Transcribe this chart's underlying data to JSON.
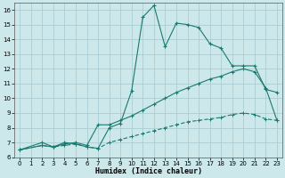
{
  "xlabel": "Humidex (Indice chaleur)",
  "bg_color": "#cce8ea",
  "grid_color": "#aacdd4",
  "line_color": "#1a7a6e",
  "xlim": [
    -0.5,
    23.5
  ],
  "ylim": [
    6,
    16.5
  ],
  "xticks": [
    0,
    1,
    2,
    3,
    4,
    5,
    6,
    7,
    8,
    9,
    10,
    11,
    12,
    13,
    14,
    15,
    16,
    17,
    18,
    19,
    20,
    21,
    22,
    23
  ],
  "yticks": [
    6,
    7,
    8,
    9,
    10,
    11,
    12,
    13,
    14,
    15,
    16
  ],
  "series1_x": [
    0,
    2,
    3,
    4,
    5,
    6,
    7,
    8,
    9,
    10,
    11,
    12,
    13,
    14,
    15,
    16,
    17,
    18,
    19,
    20,
    21,
    22,
    23
  ],
  "series1_y": [
    6.5,
    7.0,
    6.7,
    7.0,
    6.9,
    6.7,
    6.6,
    8.0,
    8.3,
    10.5,
    15.5,
    16.3,
    13.5,
    15.1,
    15.0,
    14.8,
    13.7,
    13.4,
    12.2,
    12.2,
    12.2,
    10.6,
    10.4
  ],
  "series2_x": [
    0,
    2,
    3,
    4,
    5,
    6,
    7,
    8,
    9,
    10,
    11,
    12,
    13,
    14,
    15,
    16,
    17,
    18,
    19,
    20,
    21,
    22,
    23
  ],
  "series2_y": [
    6.5,
    6.8,
    6.7,
    6.9,
    7.0,
    6.8,
    8.2,
    8.2,
    8.5,
    8.8,
    9.2,
    9.6,
    10.0,
    10.4,
    10.7,
    11.0,
    11.3,
    11.5,
    11.8,
    12.0,
    11.8,
    10.7,
    8.5
  ],
  "series3_x": [
    0,
    2,
    3,
    4,
    5,
    6,
    7,
    8,
    9,
    10,
    11,
    12,
    13,
    14,
    15,
    16,
    17,
    18,
    19,
    20,
    21,
    22,
    23
  ],
  "series3_y": [
    6.5,
    6.8,
    6.7,
    6.8,
    6.9,
    6.7,
    6.6,
    7.0,
    7.2,
    7.4,
    7.6,
    7.8,
    8.0,
    8.2,
    8.4,
    8.5,
    8.6,
    8.7,
    8.9,
    9.0,
    8.9,
    8.6,
    8.5
  ]
}
